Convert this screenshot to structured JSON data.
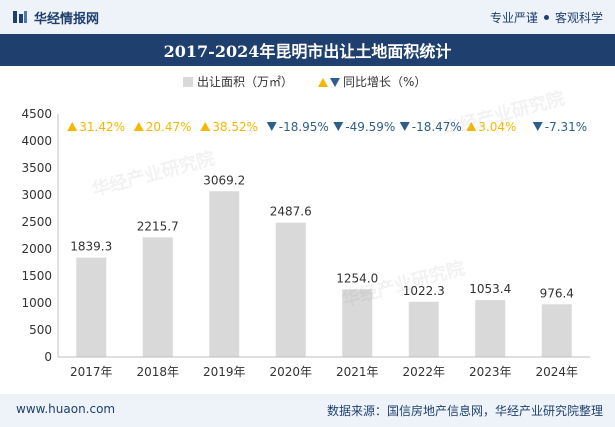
{
  "header": {
    "logo_text": "华经情报网",
    "tagline_left": "专业严谨",
    "tagline_right": "客观科学"
  },
  "footer": {
    "website": "www.huaon.com",
    "source": "数据来源：国信房地产信息网，华经产业研究院整理"
  },
  "watermark": "华经产业研究院",
  "colors": {
    "bar": "#d9d9d9",
    "up": "#f5b800",
    "down": "#2e5f8a",
    "brand": "#1f3f6e"
  },
  "chart_data": {
    "type": "bar",
    "title": "2017-2024年昆明市出让土地面积统计",
    "legend": {
      "bar_label": "出让面积（万㎡）",
      "growth_label": "同比增长（%）"
    },
    "categories": [
      "2017年",
      "2018年",
      "2019年",
      "2020年",
      "2021年",
      "2022年",
      "2023年",
      "2024年"
    ],
    "values": [
      1839.3,
      2215.7,
      3069.2,
      2487.6,
      1254.0,
      1022.3,
      1053.4,
      976.4
    ],
    "value_labels": [
      "1839.3",
      "2215.7",
      "3069.2",
      "2487.6",
      "1254.0",
      "1022.3",
      "1053.4",
      "976.4"
    ],
    "growth": [
      31.42,
      20.47,
      38.52,
      -18.95,
      -49.59,
      -18.47,
      3.04,
      -7.31
    ],
    "growth_labels": [
      "31.42%",
      "20.47%",
      "38.52%",
      "-18.95%",
      "-49.59%",
      "-18.47%",
      "3.04%",
      "-7.31%"
    ],
    "ylim": [
      0,
      4500
    ],
    "yticks": [
      "0",
      "500",
      "1000",
      "1500",
      "2000",
      "2500",
      "3000",
      "3500",
      "4000",
      "4500"
    ],
    "ytick_values": [
      0,
      500,
      1000,
      1500,
      2000,
      2500,
      3000,
      3500,
      4000,
      4500
    ]
  }
}
